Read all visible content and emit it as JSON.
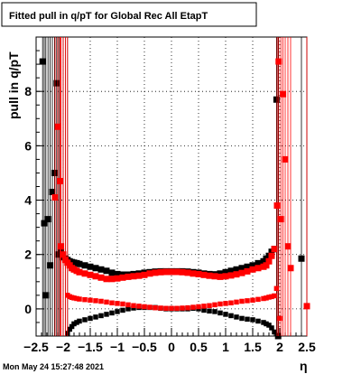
{
  "chart_data": {
    "type": "scatter",
    "title": "Fitted pull in q/pT for Global Rec All EtapT",
    "xlabel": "η",
    "ylabel": "pull in q/pT",
    "xlim": [
      -2.5,
      2.5
    ],
    "ylim": [
      -1.0,
      10.0
    ],
    "x_ticks": [
      "−2.5",
      "−2",
      "−1.5",
      "−1",
      "−0.5",
      "0",
      "0.5",
      "1",
      "1.5",
      "2",
      "2.5"
    ],
    "x_tick_values": [
      -2.5,
      -2,
      -1.5,
      -1,
      -0.5,
      0,
      0.5,
      1,
      1.5,
      2,
      2.5
    ],
    "y_ticks": [
      "0",
      "2",
      "4",
      "6",
      "8"
    ],
    "y_tick_values": [
      0,
      2,
      4,
      6,
      8
    ],
    "grid": true,
    "timestamp": "Mon May 24 15:27:48 2021",
    "series": [
      {
        "color": "#000000",
        "marker": "square",
        "x": [
          -2.38,
          -2.35,
          -2.32,
          -2.28,
          -2.24,
          -2.2,
          -2.16,
          -2.12,
          -2.08,
          -2.04,
          -2.0,
          -1.96,
          -1.92,
          -1.88,
          -1.84,
          -1.8,
          -1.75,
          -1.7,
          -1.6,
          -1.5,
          -1.4,
          -1.3,
          -1.2,
          -1.1,
          -1.0,
          -0.9,
          -0.8,
          -0.7,
          -0.6,
          -0.5,
          -0.4,
          -0.3,
          -0.2,
          -0.1,
          0.0,
          0.1,
          0.2,
          0.3,
          0.4,
          0.5,
          0.6,
          0.7,
          0.8,
          0.9,
          1.0,
          1.1,
          1.2,
          1.3,
          1.4,
          1.5,
          1.6,
          1.7,
          1.75,
          1.8,
          1.85,
          1.9,
          1.94,
          1.97,
          2.4
        ],
        "y": [
          9.1,
          3.15,
          0.5,
          3.3,
          1.6,
          4.3,
          5.0,
          8.3,
          2.0,
          2.1,
          1.9,
          1.85,
          1.8,
          1.75,
          1.72,
          1.7,
          1.68,
          1.65,
          1.6,
          1.55,
          1.5,
          1.45,
          1.4,
          1.33,
          1.28,
          1.26,
          1.26,
          1.28,
          1.3,
          1.33,
          1.35,
          1.37,
          1.38,
          1.38,
          1.38,
          1.38,
          1.38,
          1.37,
          1.35,
          1.33,
          1.3,
          1.28,
          1.27,
          1.3,
          1.35,
          1.4,
          1.45,
          1.5,
          1.55,
          1.6,
          1.68,
          1.75,
          1.85,
          1.95,
          2.1,
          2.2,
          7.7,
          -1.0,
          1.85
        ],
        "x2": [
          -1.92,
          -1.88,
          -1.84,
          -1.8,
          -1.75,
          -1.7,
          -1.6,
          -1.5,
          -1.4,
          -1.3,
          -1.2,
          -1.1,
          -1.0,
          -0.9,
          -0.8,
          -0.7,
          -0.6,
          -0.5,
          -0.4,
          -0.3,
          -0.2,
          -0.1,
          0.0,
          0.1,
          0.2,
          0.3,
          0.4,
          0.5,
          0.6,
          0.7,
          0.8,
          0.9,
          1.0,
          1.1,
          1.2,
          1.3,
          1.4,
          1.5,
          1.6,
          1.7,
          1.75,
          1.8,
          1.85,
          1.9
        ],
        "y2": [
          -0.9,
          -0.75,
          -0.65,
          -0.55,
          -0.5,
          -0.45,
          -0.4,
          -0.35,
          -0.3,
          -0.25,
          -0.2,
          -0.15,
          -0.1,
          -0.05,
          0.0,
          0.03,
          0.05,
          0.05,
          0.05,
          0.05,
          0.02,
          0.0,
          0.0,
          0.0,
          0.0,
          0.0,
          0.02,
          0.0,
          -0.05,
          -0.08,
          -0.1,
          -0.15,
          -0.2,
          -0.25,
          -0.3,
          -0.35,
          -0.38,
          -0.4,
          -0.45,
          -0.5,
          -0.55,
          -0.6,
          -0.7,
          -0.85
        ]
      },
      {
        "color": "#ff0000",
        "marker": "square",
        "x": [
          -2.15,
          -2.1,
          -2.06,
          -2.04,
          -2.0,
          -1.96,
          -1.92,
          -1.88,
          -1.84,
          -1.8,
          -1.75,
          -1.7,
          -1.6,
          -1.5,
          -1.4,
          -1.3,
          -1.2,
          -1.1,
          -1.0,
          -0.9,
          -0.8,
          -0.7,
          -0.6,
          -0.5,
          -0.4,
          -0.3,
          -0.2,
          -0.1,
          0.0,
          0.1,
          0.2,
          0.3,
          0.4,
          0.5,
          0.6,
          0.7,
          0.8,
          0.9,
          1.0,
          1.1,
          1.2,
          1.3,
          1.4,
          1.5,
          1.6,
          1.7,
          1.75,
          1.8,
          1.85,
          1.9,
          1.95,
          1.98,
          2.02,
          2.06,
          2.1,
          2.15,
          2.2,
          2.5
        ],
        "y": [
          4.1,
          6.7,
          4.7,
          2.3,
          2.0,
          1.8,
          1.7,
          1.6,
          1.5,
          1.45,
          1.4,
          1.35,
          1.3,
          1.25,
          1.2,
          1.15,
          1.1,
          1.1,
          1.12,
          1.15,
          1.18,
          1.2,
          1.22,
          1.25,
          1.3,
          1.33,
          1.35,
          1.36,
          1.36,
          1.36,
          1.35,
          1.33,
          1.3,
          1.28,
          1.25,
          1.22,
          1.2,
          1.18,
          1.2,
          1.23,
          1.27,
          1.32,
          1.38,
          1.45,
          1.5,
          1.55,
          1.6,
          1.75,
          1.95,
          2.2,
          3.8,
          9.1,
          3.3,
          7.9,
          5.5,
          2.3,
          1.5,
          0.1
        ],
        "x2": [
          -1.92,
          -1.88,
          -1.84,
          -1.8,
          -1.75,
          -1.7,
          -1.6,
          -1.5,
          -1.4,
          -1.3,
          -1.2,
          -1.1,
          -1.0,
          -0.9,
          -0.8,
          -0.7,
          -0.6,
          -0.5,
          -0.4,
          -0.3,
          -0.2,
          -0.1,
          0.0,
          0.1,
          0.2,
          0.3,
          0.4,
          0.5,
          0.6,
          0.7,
          0.8,
          0.9,
          1.0,
          1.1,
          1.2,
          1.3,
          1.4,
          1.5,
          1.6,
          1.7,
          1.75,
          1.8,
          1.85,
          1.9,
          1.94,
          2.0
        ],
        "y2": [
          0.5,
          0.45,
          0.42,
          0.4,
          0.38,
          0.36,
          0.34,
          0.32,
          0.3,
          0.28,
          0.25,
          0.22,
          0.2,
          0.18,
          0.15,
          0.12,
          0.1,
          0.08,
          0.06,
          0.04,
          0.03,
          0.02,
          0.02,
          0.02,
          0.03,
          0.04,
          0.06,
          0.08,
          0.1,
          0.12,
          0.15,
          0.18,
          0.2,
          0.22,
          0.25,
          0.28,
          0.3,
          0.32,
          0.35,
          0.38,
          0.4,
          0.43,
          0.45,
          0.48,
          0.75,
          -0.35
        ]
      }
    ]
  }
}
